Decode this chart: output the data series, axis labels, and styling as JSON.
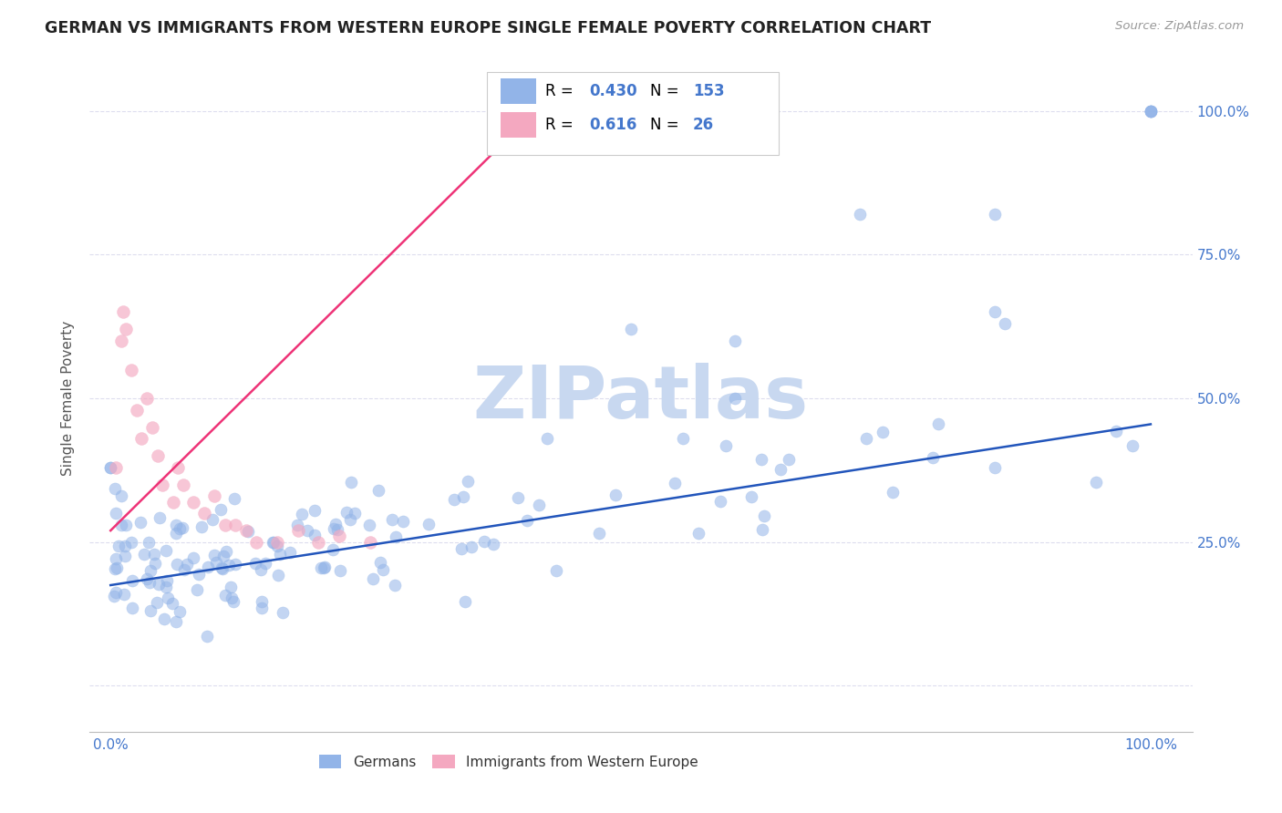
{
  "title": "GERMAN VS IMMIGRANTS FROM WESTERN EUROPE SINGLE FEMALE POVERTY CORRELATION CHART",
  "source": "Source: ZipAtlas.com",
  "ylabel": "Single Female Poverty",
  "legend_german": "Germans",
  "legend_immigrant": "Immigrants from Western Europe",
  "R_german": 0.43,
  "N_german": 153,
  "R_immigrant": 0.616,
  "N_immigrant": 26,
  "blue_scatter_color": "#92B4E8",
  "pink_scatter_color": "#F4A8C0",
  "blue_line_color": "#2255BB",
  "pink_line_color": "#EE3377",
  "blue_text_color": "#4477CC",
  "watermark_color": "#C8D8F0",
  "axis_tick_color": "#4477CC",
  "grid_color": "#DDDDEE",
  "background_color": "#FFFFFF",
  "title_color": "#222222",
  "ylim": [
    -0.08,
    1.08
  ],
  "xlim": [
    -0.02,
    1.04
  ],
  "yticks": [
    0.0,
    0.25,
    0.5,
    0.75,
    1.0
  ],
  "ytick_labels": [
    "",
    "25.0%",
    "50.0%",
    "75.0%",
    "100.0%"
  ],
  "blue_line_x0": 0.0,
  "blue_line_y0": 0.175,
  "blue_line_x1": 1.0,
  "blue_line_y1": 0.455,
  "pink_line_x0": 0.0,
  "pink_line_y0": 0.27,
  "pink_line_x1": 0.42,
  "pink_line_y1": 1.02
}
